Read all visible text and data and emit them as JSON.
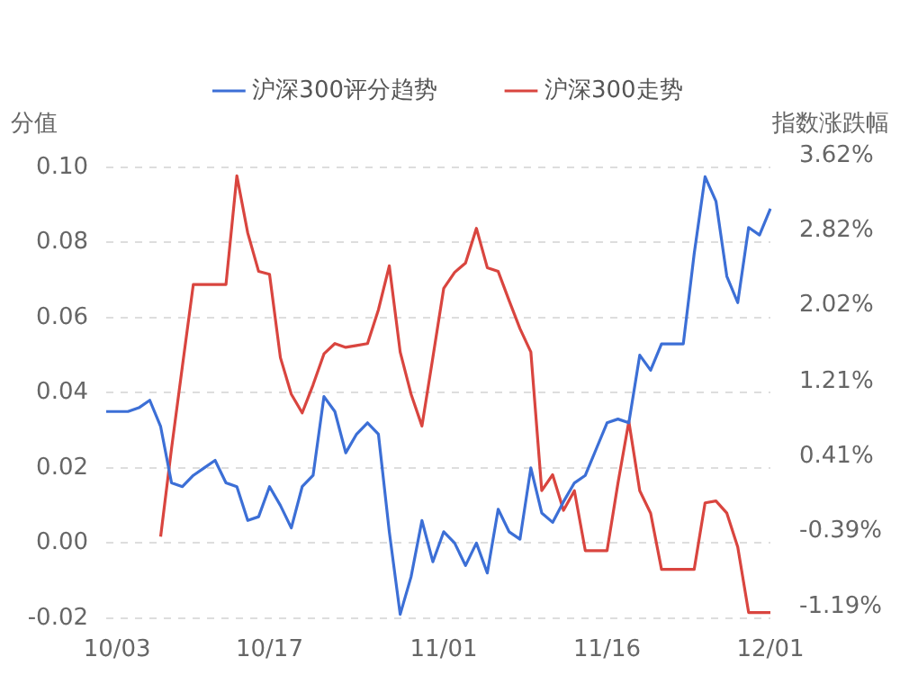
{
  "chart_data": {
    "type": "line",
    "ylabel": "分值",
    "y2label": "指数涨跌幅",
    "categories": [
      null,
      "10/03",
      null,
      null,
      null,
      null,
      null,
      null,
      null,
      null,
      null,
      null,
      null,
      null,
      null,
      "10/17",
      null,
      null,
      null,
      null,
      null,
      null,
      null,
      null,
      null,
      null,
      null,
      null,
      null,
      null,
      null,
      "11/01",
      null,
      null,
      null,
      null,
      null,
      null,
      null,
      null,
      null,
      null,
      null,
      null,
      null,
      null,
      "11/16",
      null,
      null,
      null,
      null,
      null,
      null,
      null,
      null,
      null,
      null,
      null,
      null,
      null,
      null,
      "12/01"
    ],
    "series": [
      {
        "name": "沪深300评分趋势",
        "color": "#3c6fd6",
        "values": [
          0.035,
          0.035,
          0.035,
          0.036,
          0.038,
          0.031,
          0.016,
          0.015,
          0.018,
          0.02,
          0.022,
          0.016,
          0.015,
          0.006,
          0.007,
          0.015,
          0.01,
          0.004,
          0.015,
          0.018,
          0.039,
          0.035,
          0.024,
          0.029,
          0.032,
          0.029,
          0.003,
          -0.019,
          -0.009,
          0.006,
          -0.005,
          0.003,
          0.0,
          -0.006,
          0.0,
          -0.008,
          0.009,
          0.003,
          0.001,
          0.02,
          0.008,
          0.0055,
          0.011,
          0.016,
          0.018,
          0.025,
          0.032,
          0.033,
          0.032,
          0.05,
          0.046,
          0.053,
          0.053,
          0.053,
          0.077,
          0.0975,
          0.091,
          0.071,
          0.064,
          0.084,
          0.082,
          0.089
        ]
      },
      {
        "name": "沪深300走势",
        "color": "#d9453f",
        "axis": "y2",
        "values": [
          null,
          null,
          null,
          null,
          null,
          -0.32,
          0.62,
          1.5,
          2.37,
          2.37,
          2.37,
          2.37,
          3.53,
          2.92,
          2.51,
          2.48,
          1.59,
          1.2,
          1.0,
          1.3,
          1.63,
          1.74,
          1.7,
          1.72,
          1.74,
          2.1,
          2.57,
          1.65,
          1.2,
          0.86,
          1.59,
          2.33,
          2.5,
          2.6,
          2.97,
          2.55,
          2.51,
          2.2,
          1.9,
          1.65,
          0.17,
          0.34,
          -0.04,
          0.17,
          -0.47,
          -0.47,
          -0.47,
          0.25,
          0.91,
          0.17,
          -0.07,
          -0.67,
          -0.67,
          -0.67,
          -0.67,
          0.04,
          0.06,
          -0.07,
          -0.43,
          -1.13,
          -1.13,
          -1.13
        ]
      }
    ],
    "ylim": [
      -0.02,
      0.1
    ],
    "yticks": [
      {
        "value": -0.02,
        "label": "-0.02"
      },
      {
        "value": 0,
        "label": "0.00"
      },
      {
        "value": 0.02,
        "label": "0.02"
      },
      {
        "value": 0.04,
        "label": "0.04"
      },
      {
        "value": 0.06,
        "label": "0.06"
      },
      {
        "value": 0.08,
        "label": "0.08"
      },
      {
        "value": 0.1,
        "label": "0.10"
      }
    ],
    "y2lim": [
      -1.19,
      3.62
    ],
    "y2ticks": [
      {
        "value": -1.19,
        "label": "-1.19%"
      },
      {
        "value": -0.39,
        "label": "-0.39%"
      },
      {
        "value": 0.41,
        "label": "0.41%"
      },
      {
        "value": 1.21,
        "label": "1.21%"
      },
      {
        "value": 2.02,
        "label": "2.02%"
      },
      {
        "value": 2.82,
        "label": "2.82%"
      },
      {
        "value": 3.62,
        "label": "3.62%"
      }
    ],
    "grid": "y",
    "legend": "top",
    "marker": "none",
    "line_style": "solid"
  }
}
